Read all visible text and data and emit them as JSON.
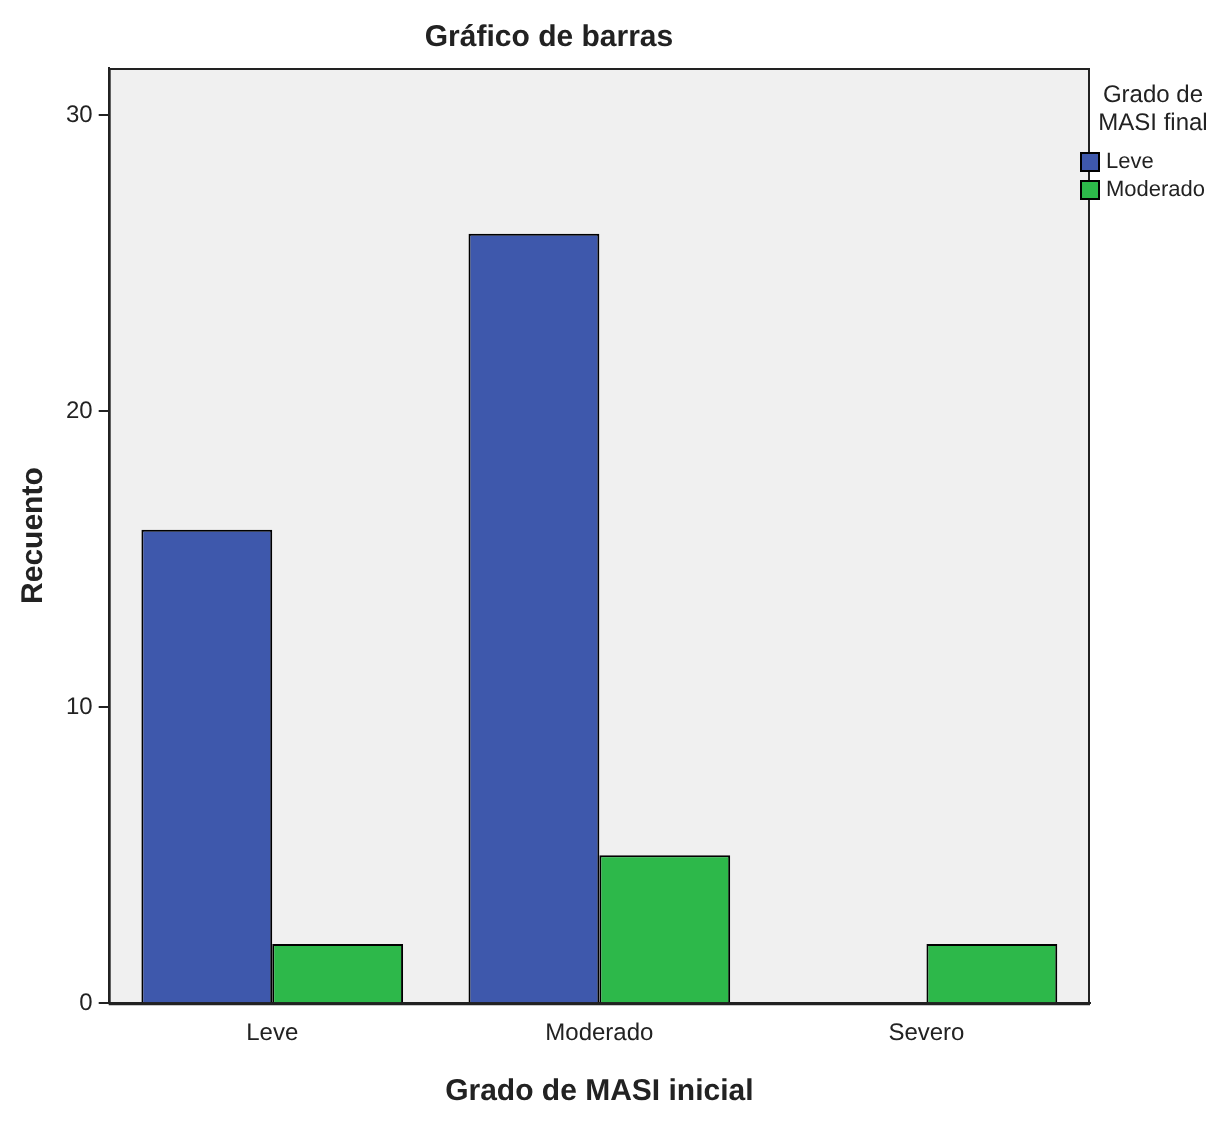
{
  "chart_data": {
    "type": "bar",
    "title": "Gráfico de barras",
    "xlabel": "Grado de MASI inicial",
    "ylabel": "Recuento",
    "legend_title": "Grado de MASI final",
    "legend": "top right",
    "grid": false,
    "categories": [
      "Leve",
      "Moderado",
      "Severo"
    ],
    "series": [
      {
        "name": "Leve",
        "color": "#3e58ac",
        "values": [
          16,
          26,
          null
        ]
      },
      {
        "name": "Moderado",
        "color": "#2db84a",
        "values": [
          2,
          5,
          2
        ]
      }
    ],
    "ylim": [
      0,
      31.6
    ],
    "yticks": [
      0,
      10,
      20,
      30
    ]
  }
}
